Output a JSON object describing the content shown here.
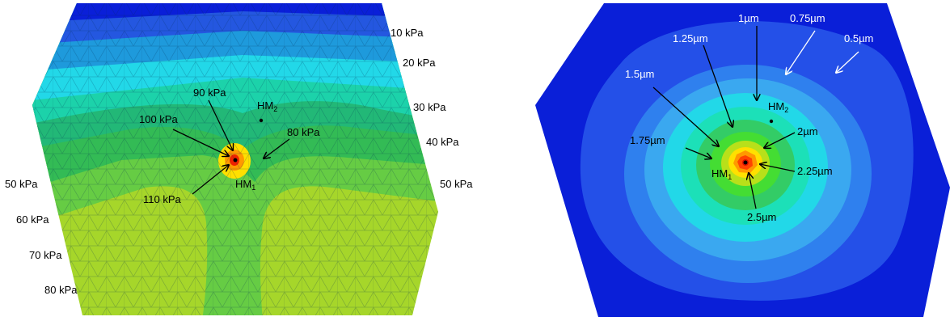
{
  "left_panel": {
    "pressure_labels": [
      {
        "id": "p10-right",
        "text": "10 kPa"
      },
      {
        "id": "p20-right",
        "text": "20 kPa"
      },
      {
        "id": "p30-right",
        "text": "30 kPa"
      },
      {
        "id": "p40-right",
        "text": "40 kPa"
      },
      {
        "id": "p50-right",
        "text": "50 kPa"
      },
      {
        "id": "p50-left",
        "text": "50 kPa"
      },
      {
        "id": "p60-left",
        "text": "60 kPa"
      },
      {
        "id": "p70-left",
        "text": "70 kPa"
      },
      {
        "id": "p80-left",
        "text": "80 kPa"
      },
      {
        "id": "p90-center",
        "text": "90 kPa"
      },
      {
        "id": "p100-center",
        "text": "100 kPa"
      },
      {
        "id": "p80-center",
        "text": "80 kPa"
      },
      {
        "id": "p110-center",
        "text": "110 kPa"
      }
    ],
    "hm1": {
      "base": "HM",
      "sub": "1"
    },
    "hm2": {
      "base": "HM",
      "sub": "2"
    }
  },
  "right_panel": {
    "displacement_labels": [
      {
        "id": "d1",
        "text": "1µm"
      },
      {
        "id": "d075",
        "text": "0.75µm"
      },
      {
        "id": "d05",
        "text": "0.5µm"
      },
      {
        "id": "d125",
        "text": "1.25µm"
      },
      {
        "id": "d15",
        "text": "1.5µm"
      },
      {
        "id": "d175",
        "text": "1.75µm"
      },
      {
        "id": "d2",
        "text": "2µm"
      },
      {
        "id": "d225",
        "text": "2.25µm"
      },
      {
        "id": "d25",
        "text": "2.5µm"
      }
    ],
    "hm1": {
      "base": "HM",
      "sub": "1"
    },
    "hm2": {
      "base": "HM",
      "sub": "2"
    }
  },
  "colors": {
    "deep_blue": "#0a1fd8",
    "blue": "#2450e8",
    "mid_blue": "#2f80ee",
    "light_blue": "#3aa8f0",
    "cyan": "#22d8e8",
    "aqua": "#1ce0b8",
    "green": "#33cc66",
    "bright_green": "#44dd33",
    "yellow_green": "#a6d62a",
    "lime": "#b8e01a",
    "yellow": "#ffe000",
    "orange": "#ff9900",
    "red_orange": "#ff4400",
    "red": "#dd1100"
  }
}
